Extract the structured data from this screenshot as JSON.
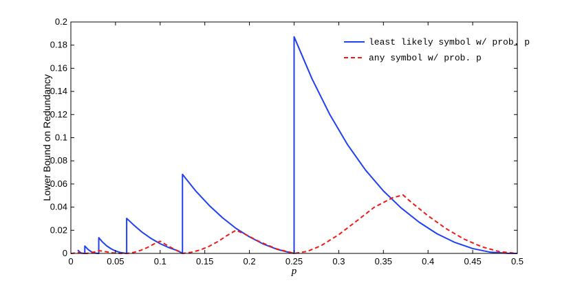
{
  "chart_data": {
    "type": "line",
    "xlabel": "p",
    "ylabel": "Lower Bound on Redundancy",
    "xlim": [
      0,
      0.5
    ],
    "ylim": [
      0,
      0.2
    ],
    "xticks": [
      0,
      0.05,
      0.1,
      0.15,
      0.2,
      0.25,
      0.3,
      0.35,
      0.4,
      0.45,
      0.5
    ],
    "xtick_labels": [
      "0",
      "0.05",
      "0.1",
      "0.15",
      "0.2",
      "0.25",
      "0.3",
      "0.35",
      "0.4",
      "0.45",
      "0.5"
    ],
    "yticks": [
      0,
      0.02,
      0.04,
      0.06,
      0.08,
      0.1,
      0.12,
      0.14,
      0.16,
      0.18,
      0.2
    ],
    "ytick_labels": [
      "0",
      "0.02",
      "0.04",
      "0.06",
      "0.08",
      "0.1",
      "0.12",
      "0.14",
      "0.16",
      "0.18",
      "0.2"
    ],
    "legend_position": "top-right",
    "grid": false,
    "series": [
      {
        "name": "least likely symbol w/ prob. p",
        "color": "#1f3ff2",
        "style": "solid",
        "x": [
          0.0078125,
          0.0085,
          0.0095,
          0.0105,
          0.0115,
          0.0125,
          0.014,
          0.015625,
          0.015625,
          0.017,
          0.019,
          0.021,
          0.023,
          0.025,
          0.027,
          0.029,
          0.03125,
          0.03125,
          0.035,
          0.04,
          0.045,
          0.05,
          0.055,
          0.06,
          0.0625,
          0.0625,
          0.07,
          0.08,
          0.09,
          0.1,
          0.11,
          0.12,
          0.125,
          0.125,
          0.14,
          0.155,
          0.17,
          0.185,
          0.2,
          0.215,
          0.23,
          0.24,
          0.25,
          0.25,
          0.27,
          0.29,
          0.31,
          0.33,
          0.35,
          0.37,
          0.39,
          0.41,
          0.43,
          0.45,
          0.47,
          0.49,
          0.5
        ],
        "y": [
          0.003,
          0.0023,
          0.0015,
          0.0009,
          0.0004,
          0.0002,
          5e-05,
          0,
          0.0064,
          0.0052,
          0.0036,
          0.0024,
          0.0014,
          0.0007,
          0.0003,
          0.0001,
          0,
          0.0136,
          0.0102,
          0.0066,
          0.004,
          0.0021,
          0.0009,
          0.0002,
          0,
          0.0303,
          0.0248,
          0.0182,
          0.0128,
          0.0084,
          0.0049,
          0.0022,
          0,
          0.0683,
          0.0538,
          0.0414,
          0.0307,
          0.0216,
          0.0143,
          0.0083,
          0.0038,
          0.0017,
          0,
          0.1872,
          0.151,
          0.12,
          0.0938,
          0.072,
          0.054,
          0.0392,
          0.027,
          0.017,
          0.0095,
          0.0042,
          0.001,
          0.0001,
          0
        ]
      },
      {
        "name": "any symbol w/ prob. p",
        "color": "#f21818",
        "style": "dashed",
        "x": [
          0.0,
          0.002,
          0.004,
          0.0078125,
          0.01,
          0.0125,
          0.015625,
          0.018,
          0.022,
          0.026,
          0.03125,
          0.036,
          0.042,
          0.048,
          0.054,
          0.0625,
          0.07,
          0.078,
          0.086,
          0.094,
          0.1,
          0.11,
          0.125,
          0.135,
          0.145,
          0.155,
          0.165,
          0.175,
          0.185,
          0.195,
          0.21,
          0.23,
          0.25,
          0.265,
          0.28,
          0.3,
          0.32,
          0.34,
          0.36,
          0.372,
          0.38,
          0.4,
          0.42,
          0.44,
          0.46,
          0.48,
          0.5
        ],
        "y": [
          0,
          0.0001,
          0.0003,
          0.0008,
          0.0004,
          0.0001,
          0,
          0.0001,
          0.0005,
          0.0012,
          0.0024,
          0.0019,
          0.0011,
          0.0004,
          0.0001,
          0,
          0.0008,
          0.0026,
          0.0052,
          0.0085,
          0.0105,
          0.006,
          0,
          0.001,
          0.003,
          0.0062,
          0.0104,
          0.0155,
          0.02,
          0.0166,
          0.0106,
          0.004,
          0,
          0.0018,
          0.0066,
          0.0162,
          0.028,
          0.04,
          0.048,
          0.0505,
          0.045,
          0.0325,
          0.0215,
          0.0125,
          0.0058,
          0.0015,
          0
        ]
      }
    ]
  }
}
